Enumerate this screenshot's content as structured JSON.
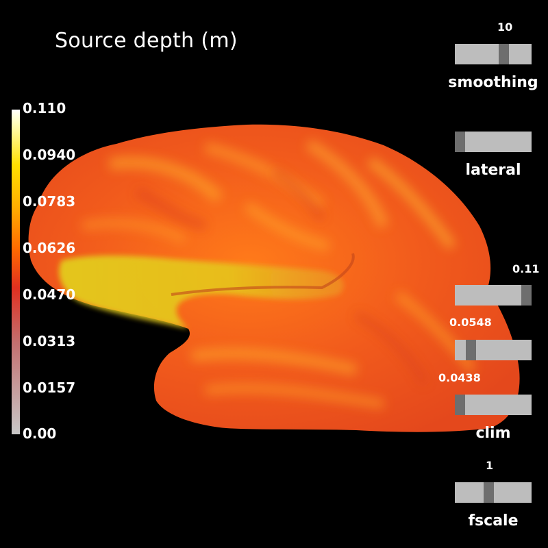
{
  "title": "Source depth (m)",
  "colorbar": {
    "labels": [
      "0.110",
      "0.0940",
      "0.0783",
      "0.0626",
      "0.0470",
      "0.0313",
      "0.0157",
      "0.00"
    ]
  },
  "sliders": {
    "smoothing": {
      "title": "smoothing",
      "value_label": "10"
    },
    "lateral": {
      "title": "lateral"
    },
    "clim_max": {
      "value_label": "0.11"
    },
    "clim_mid": {
      "value_label": "0.0548"
    },
    "clim_min": {
      "value_label": "0.0438"
    },
    "clim": {
      "title": "clim"
    },
    "fscale": {
      "title": "fscale",
      "value_label": "1"
    }
  },
  "colors": {
    "background": "#000000",
    "slider_track": "#bdbdbd",
    "slider_handle": "#6e6e6e"
  }
}
